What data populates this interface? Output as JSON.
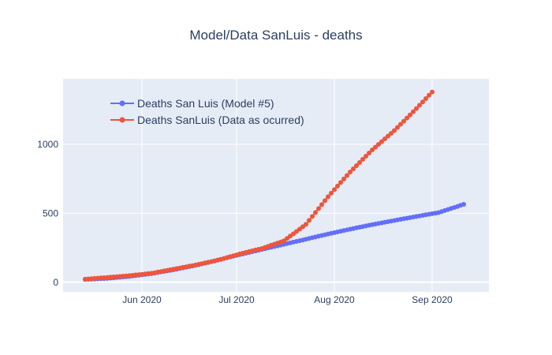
{
  "chart_data": {
    "type": "line",
    "title": "Model/Data SanLuis - deaths",
    "xlabel": "",
    "ylabel": "",
    "x_axis": {
      "type": "date",
      "range": [
        "2020-05-07",
        "2020-09-19"
      ]
    },
    "ylim": [
      -70,
      1475
    ],
    "x_tick_labels": [
      {
        "date": "2020-06-01",
        "label": "Jun 2020"
      },
      {
        "date": "2020-07-01",
        "label": "Jul 2020"
      },
      {
        "date": "2020-08-01",
        "label": "Aug 2020"
      },
      {
        "date": "2020-09-01",
        "label": "Sep 2020"
      }
    ],
    "y_ticks": [
      0,
      500,
      1000
    ],
    "grid": true,
    "legend_position": "top-left",
    "background_color": "#e5ecf6",
    "series": [
      {
        "name": "Deaths San Luis (Model #5)",
        "color": "#636efa",
        "mode": "lines+markers",
        "start_date": "2020-05-14",
        "end_date": "2020-09-11",
        "anchor_points": [
          {
            "date": "2020-05-14",
            "value": 20
          },
          {
            "date": "2020-05-21",
            "value": 28
          },
          {
            "date": "2020-05-28",
            "value": 42
          },
          {
            "date": "2020-06-04",
            "value": 62
          },
          {
            "date": "2020-06-11",
            "value": 90
          },
          {
            "date": "2020-06-18",
            "value": 122
          },
          {
            "date": "2020-06-25",
            "value": 160
          },
          {
            "date": "2020-07-02",
            "value": 200
          },
          {
            "date": "2020-07-09",
            "value": 238
          },
          {
            "date": "2020-07-16",
            "value": 275
          },
          {
            "date": "2020-07-23",
            "value": 312
          },
          {
            "date": "2020-07-30",
            "value": 350
          },
          {
            "date": "2020-08-06",
            "value": 385
          },
          {
            "date": "2020-08-13",
            "value": 418
          },
          {
            "date": "2020-08-20",
            "value": 448
          },
          {
            "date": "2020-08-27",
            "value": 477
          },
          {
            "date": "2020-09-03",
            "value": 505
          },
          {
            "date": "2020-09-11",
            "value": 565
          }
        ]
      },
      {
        "name": "Deaths SanLuis (Data as ocurred)",
        "color": "#ef553b",
        "mode": "lines+markers",
        "start_date": "2020-05-14",
        "end_date": "2020-09-01",
        "anchor_points": [
          {
            "date": "2020-05-14",
            "value": 22
          },
          {
            "date": "2020-05-21",
            "value": 35
          },
          {
            "date": "2020-05-28",
            "value": 48
          },
          {
            "date": "2020-06-04",
            "value": 65
          },
          {
            "date": "2020-06-11",
            "value": 95
          },
          {
            "date": "2020-06-18",
            "value": 125
          },
          {
            "date": "2020-06-25",
            "value": 160
          },
          {
            "date": "2020-07-02",
            "value": 205
          },
          {
            "date": "2020-07-09",
            "value": 245
          },
          {
            "date": "2020-07-16",
            "value": 300
          },
          {
            "date": "2020-07-23",
            "value": 420
          },
          {
            "date": "2020-07-30",
            "value": 620
          },
          {
            "date": "2020-08-06",
            "value": 800
          },
          {
            "date": "2020-08-13",
            "value": 960
          },
          {
            "date": "2020-08-20",
            "value": 1100
          },
          {
            "date": "2020-08-27",
            "value": 1260
          },
          {
            "date": "2020-09-01",
            "value": 1380
          }
        ]
      }
    ]
  }
}
